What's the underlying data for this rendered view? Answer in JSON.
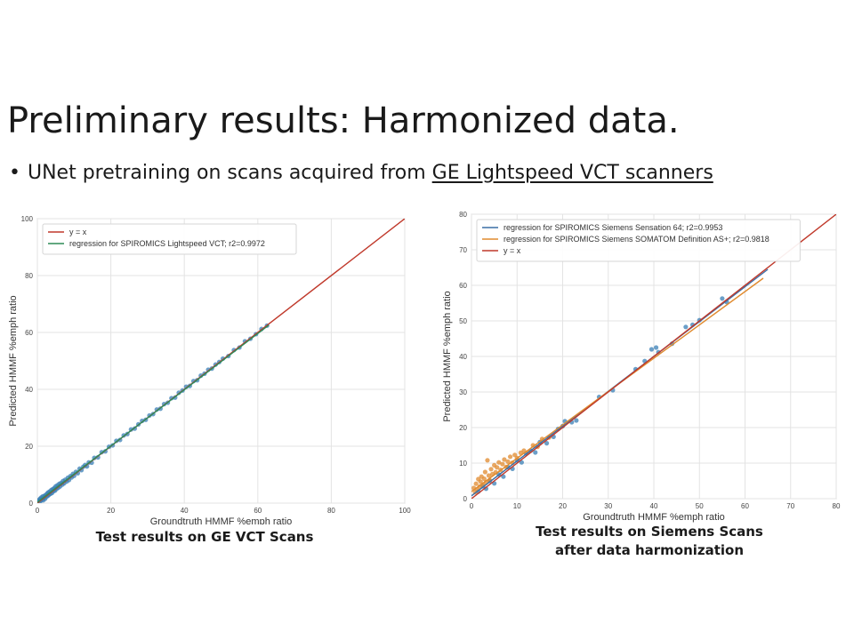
{
  "slide": {
    "title": "Preliminary results: Harmonized data.",
    "bullet": {
      "prefix": "UNet pretraining on scans acquired from",
      "underlined": "GE Lightspeed VCT scanners"
    }
  },
  "chart_data": [
    {
      "type": "scatter",
      "xlabel": "Groundtruth HMMF %emph ratio",
      "ylabel": "Predicted HMMF %emph ratio",
      "xlim": [
        0,
        100
      ],
      "ylim": [
        0,
        100
      ],
      "xticks": [
        0,
        20,
        40,
        60,
        80,
        100
      ],
      "yticks": [
        0,
        20,
        40,
        60,
        80,
        100
      ],
      "grid": true,
      "legend_position": "top-left",
      "caption": "Test results on GE VCT Scans",
      "lines": [
        {
          "name": "y = x",
          "x": [
            0,
            100
          ],
          "y": [
            0,
            100
          ],
          "color": "#c0392b"
        },
        {
          "name": "regression for SPIROMICS Lightspeed VCT; r2=0.9972",
          "x": [
            0,
            63
          ],
          "y": [
            0.3,
            62.6
          ],
          "color": "#2e8b57"
        }
      ],
      "series": [
        {
          "color": "#3a7fb5",
          "points": [
            [
              0.3,
              0.8
            ],
            [
              0.5,
              1.2
            ],
            [
              0.6,
              0.5
            ],
            [
              0.8,
              1.6
            ],
            [
              1.0,
              0.9
            ],
            [
              1.1,
              2.0
            ],
            [
              1.3,
              1.4
            ],
            [
              1.5,
              2.4
            ],
            [
              1.6,
              1.0
            ],
            [
              1.8,
              1.9
            ],
            [
              2.0,
              2.6
            ],
            [
              2.1,
              1.5
            ],
            [
              2.3,
              2.9
            ],
            [
              2.5,
              2.2
            ],
            [
              2.7,
              3.4
            ],
            [
              2.9,
              2.6
            ],
            [
              3.0,
              3.8
            ],
            [
              3.2,
              3.0
            ],
            [
              3.4,
              4.1
            ],
            [
              3.6,
              3.3
            ],
            [
              3.8,
              4.6
            ],
            [
              4.0,
              3.6
            ],
            [
              4.2,
              4.9
            ],
            [
              4.4,
              4.2
            ],
            [
              4.6,
              5.3
            ],
            [
              4.8,
              4.4
            ],
            [
              5.0,
              5.9
            ],
            [
              5.2,
              5.0
            ],
            [
              5.5,
              6.3
            ],
            [
              5.7,
              5.4
            ],
            [
              6.0,
              6.8
            ],
            [
              6.2,
              5.9
            ],
            [
              6.5,
              7.1
            ],
            [
              6.8,
              6.5
            ],
            [
              7.0,
              7.8
            ],
            [
              7.3,
              7.0
            ],
            [
              7.6,
              8.2
            ],
            [
              8.0,
              7.6
            ],
            [
              8.3,
              8.9
            ],
            [
              8.6,
              8.1
            ],
            [
              9.0,
              9.5
            ],
            [
              9.3,
              9.0
            ],
            [
              9.7,
              10.3
            ],
            [
              10.0,
              9.6
            ],
            [
              10.5,
              11.0
            ],
            [
              11.0,
              10.5
            ],
            [
              11.5,
              12.1
            ],
            [
              12.0,
              11.6
            ],
            [
              12.5,
              12.8
            ],
            [
              13.0,
              13.4
            ],
            [
              13.5,
              12.9
            ],
            [
              14.0,
              14.3
            ],
            [
              14.8,
              14.2
            ],
            [
              15.5,
              15.9
            ],
            [
              16.5,
              16.1
            ],
            [
              17.5,
              17.9
            ],
            [
              18.5,
              18.2
            ],
            [
              19.5,
              19.8
            ],
            [
              20.5,
              20.3
            ],
            [
              21.5,
              21.9
            ],
            [
              22.5,
              22.2
            ],
            [
              23.5,
              23.8
            ],
            [
              24.5,
              24.3
            ],
            [
              25.5,
              25.9
            ],
            [
              26.5,
              26.2
            ],
            [
              27.5,
              27.7
            ],
            [
              28.5,
              28.9
            ],
            [
              29.5,
              29.3
            ],
            [
              30.5,
              30.8
            ],
            [
              31.5,
              31.3
            ],
            [
              32.5,
              32.9
            ],
            [
              33.5,
              33.2
            ],
            [
              34.5,
              34.8
            ],
            [
              35.5,
              35.3
            ],
            [
              36.5,
              36.9
            ],
            [
              37.5,
              37.1
            ],
            [
              38.5,
              38.8
            ],
            [
              39.5,
              39.6
            ],
            [
              40.5,
              40.9
            ],
            [
              41.5,
              41.2
            ],
            [
              42.5,
              42.9
            ],
            [
              43.5,
              43.2
            ],
            [
              44.5,
              44.8
            ],
            [
              45.5,
              45.5
            ],
            [
              46.5,
              46.9
            ],
            [
              47.5,
              47.3
            ],
            [
              48.5,
              48.7
            ],
            [
              49.5,
              49.6
            ],
            [
              50.5,
              50.8
            ],
            [
              52.0,
              51.7
            ],
            [
              53.5,
              53.8
            ],
            [
              55.0,
              54.7
            ],
            [
              56.5,
              56.9
            ],
            [
              58.0,
              57.8
            ],
            [
              59.5,
              59.4
            ],
            [
              61.0,
              61.2
            ],
            [
              62.5,
              62.4
            ]
          ]
        }
      ]
    },
    {
      "type": "scatter",
      "xlabel": "Groundtruth HMMF %emph ratio",
      "ylabel": "Predicted HMMF %emph ratio",
      "xlim": [
        0,
        80
      ],
      "ylim": [
        0,
        80
      ],
      "xticks": [
        0,
        10,
        20,
        30,
        40,
        50,
        60,
        70,
        80
      ],
      "yticks": [
        0,
        10,
        20,
        30,
        40,
        50,
        60,
        70,
        80
      ],
      "grid": true,
      "legend_position": "top-left",
      "caption_lines": [
        "Test results on Siemens Scans",
        "after data harmonization"
      ],
      "lines": [
        {
          "name": "regression for SPIROMICS Siemens Sensation 64; r2=0.9953",
          "x": [
            0,
            65
          ],
          "y": [
            0.8,
            64.5
          ],
          "color": "#3a6ea5"
        },
        {
          "name": "regression for SPIROMICS Siemens SOMATOM Definition AS+; r2=0.9818",
          "x": [
            0,
            64
          ],
          "y": [
            2.0,
            62.0
          ],
          "color": "#e08a2e"
        },
        {
          "name": "y = x",
          "x": [
            0,
            80
          ],
          "y": [
            0,
            80
          ],
          "color": "#c0392b"
        }
      ],
      "series": [
        {
          "color": "#3a7fb5",
          "points": [
            [
              1.5,
              2.0
            ],
            [
              2.5,
              3.5
            ],
            [
              3.2,
              2.8
            ],
            [
              4.0,
              5.0
            ],
            [
              5.0,
              4.3
            ],
            [
              6.0,
              6.8
            ],
            [
              7.0,
              6.2
            ],
            [
              8.0,
              8.9
            ],
            [
              9.0,
              8.4
            ],
            [
              10.0,
              10.8
            ],
            [
              11.0,
              10.2
            ],
            [
              12.0,
              12.7
            ],
            [
              13.0,
              13.5
            ],
            [
              14.0,
              13.0
            ],
            [
              15.0,
              15.9
            ],
            [
              16.5,
              15.6
            ],
            [
              18.0,
              17.4
            ],
            [
              19.0,
              19.6
            ],
            [
              20.0,
              20.4
            ],
            [
              20.5,
              21.8
            ],
            [
              22.0,
              21.5
            ],
            [
              23.0,
              22.0
            ],
            [
              28.0,
              28.6
            ],
            [
              31.0,
              30.5
            ],
            [
              36.0,
              36.4
            ],
            [
              38.0,
              38.7
            ],
            [
              39.5,
              42.0
            ],
            [
              40.5,
              42.5
            ],
            [
              41.0,
              41.2
            ],
            [
              44.0,
              43.6
            ],
            [
              47.0,
              48.3
            ],
            [
              48.5,
              48.9
            ],
            [
              50.0,
              50.2
            ],
            [
              55.0,
              56.3
            ],
            [
              56.0,
              55.3
            ]
          ]
        },
        {
          "color": "#e08a2e",
          "points": [
            [
              0.5,
              3.0
            ],
            [
              0.8,
              1.8
            ],
            [
              1.0,
              4.2
            ],
            [
              1.2,
              2.6
            ],
            [
              1.5,
              5.5
            ],
            [
              1.8,
              3.4
            ],
            [
              2.0,
              4.8
            ],
            [
              2.2,
              6.2
            ],
            [
              2.5,
              3.9
            ],
            [
              2.8,
              5.6
            ],
            [
              3.0,
              7.5
            ],
            [
              3.2,
              4.6
            ],
            [
              3.5,
              10.8
            ],
            [
              3.8,
              6.5
            ],
            [
              4.0,
              5.2
            ],
            [
              4.3,
              8.3
            ],
            [
              4.6,
              6.9
            ],
            [
              5.0,
              9.4
            ],
            [
              5.3,
              7.4
            ],
            [
              5.6,
              8.8
            ],
            [
              6.0,
              10.2
            ],
            [
              6.4,
              8.1
            ],
            [
              6.8,
              9.7
            ],
            [
              7.2,
              11.0
            ],
            [
              7.6,
              8.9
            ],
            [
              8.0,
              10.4
            ],
            [
              8.5,
              11.8
            ],
            [
              9.0,
              10.1
            ],
            [
              9.5,
              12.3
            ],
            [
              10.0,
              11.4
            ],
            [
              10.8,
              12.9
            ],
            [
              11.5,
              13.5
            ],
            [
              12.5,
              13.1
            ],
            [
              13.5,
              15.0
            ],
            [
              14.5,
              14.6
            ],
            [
              15.5,
              16.8
            ],
            [
              17.0,
              17.2
            ]
          ]
        }
      ]
    }
  ]
}
